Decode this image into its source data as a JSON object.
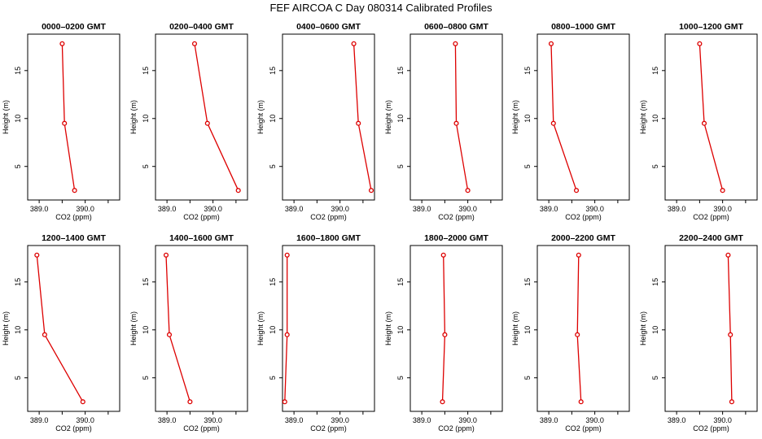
{
  "chart_data": {
    "type": "line",
    "title": "FEF AIRCOA C  Day 080314  Calibrated Profiles",
    "xlabel": "CO2 (ppm)",
    "ylabel": "Height (m)",
    "xlim": [
      388.75,
      390.75
    ],
    "ylim": [
      1.5,
      18.8
    ],
    "xticks": [
      389.0,
      389.5,
      390.0,
      390.5
    ],
    "xtick_labels": [
      "389.0",
      "",
      "390.0",
      ""
    ],
    "yticks": [
      5,
      10,
      15
    ],
    "ytick_labels": [
      "5",
      "10",
      "15"
    ],
    "line_color": "#dd0000",
    "marker": "open-circle",
    "heights": [
      2.5,
      9.5,
      17.8
    ],
    "panels": [
      {
        "title": "0000–0200 GMT",
        "co2": [
          389.77,
          389.55,
          389.5
        ]
      },
      {
        "title": "0200–0400 GMT",
        "co2": [
          390.55,
          389.88,
          389.6
        ]
      },
      {
        "title": "0400–0600 GMT",
        "co2": [
          390.68,
          390.4,
          390.3
        ]
      },
      {
        "title": "0600–0800 GMT",
        "co2": [
          390.0,
          389.75,
          389.73
        ]
      },
      {
        "title": "0800–1000 GMT",
        "co2": [
          389.6,
          389.1,
          389.05
        ]
      },
      {
        "title": "1000–1200 GMT",
        "co2": [
          390.0,
          389.6,
          389.5
        ]
      },
      {
        "title": "1200–1400 GMT",
        "co2": [
          389.95,
          389.12,
          388.95
        ]
      },
      {
        "title": "1400–1600 GMT",
        "co2": [
          389.5,
          389.05,
          388.98
        ]
      },
      {
        "title": "1600–1800 GMT",
        "co2": [
          388.8,
          388.85,
          388.85
        ]
      },
      {
        "title": "1800–2000 GMT",
        "co2": [
          389.45,
          389.5,
          389.47
        ]
      },
      {
        "title": "2000–2200 GMT",
        "co2": [
          389.7,
          389.62,
          389.65
        ]
      },
      {
        "title": "2200–2400 GMT",
        "co2": [
          390.2,
          390.17,
          390.12
        ]
      }
    ]
  }
}
